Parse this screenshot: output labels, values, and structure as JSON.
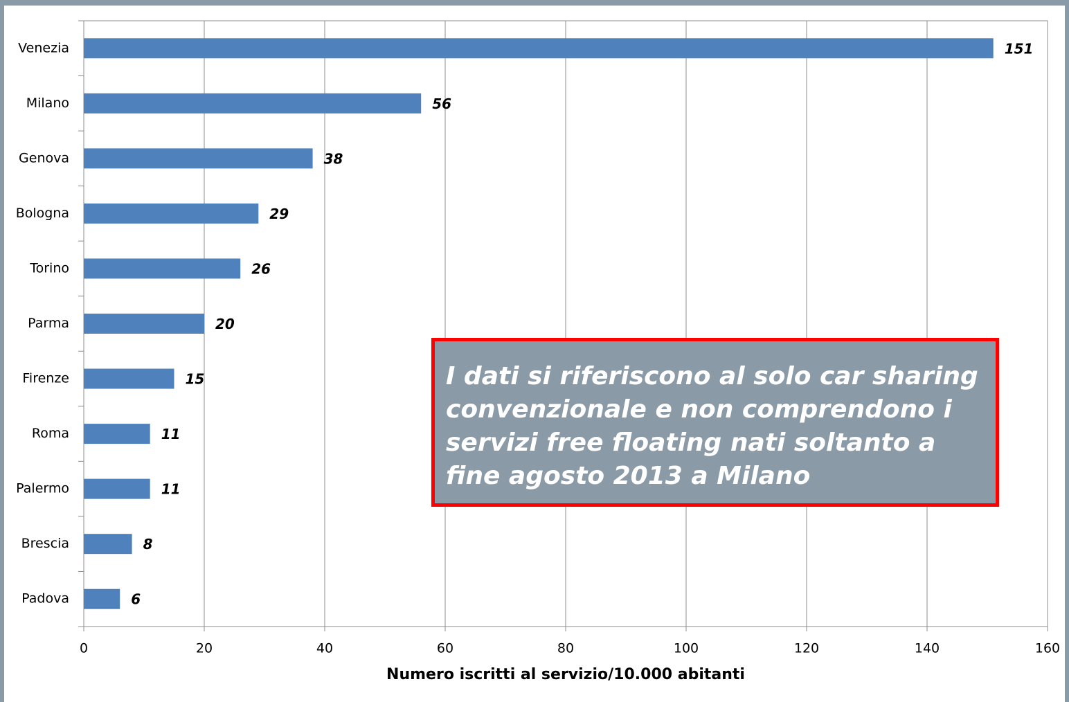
{
  "chart_data": {
    "type": "bar",
    "orientation": "horizontal",
    "categories": [
      "Venezia",
      "Milano",
      "Genova",
      "Bologna",
      "Torino",
      "Parma",
      "Firenze",
      "Roma",
      "Palermo",
      "Brescia",
      "Padova"
    ],
    "values": [
      151,
      56,
      38,
      29,
      26,
      20,
      15,
      11,
      11,
      8,
      6
    ],
    "color": "#4f81bd",
    "xlim": [
      0,
      160
    ],
    "xticks": [
      0,
      20,
      40,
      60,
      80,
      100,
      120,
      140,
      160
    ],
    "grid": true,
    "xlabel": "Numero iscritti al servizio/10.000 abitanti",
    "annotation": [
      "I dati si riferiscono al solo car sharing",
      "convenzionale e non comprendono i",
      "servizi free floating nati soltanto a",
      "fine agosto 2013 a Milano"
    ]
  }
}
